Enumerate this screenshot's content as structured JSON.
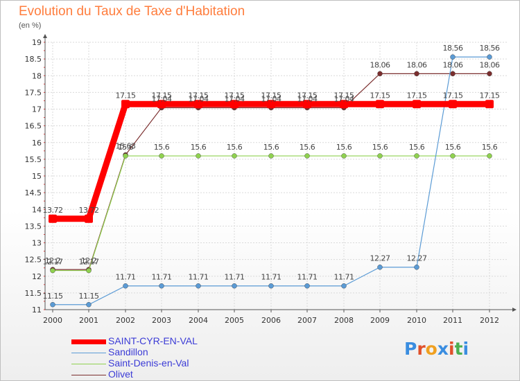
{
  "header": {
    "title": "Evolution du Taux de Taxe d'Habitation",
    "subtitle": "(en %)"
  },
  "logo": {
    "text": "Proxiti",
    "colors": [
      "#3a8de0",
      "#e0502a",
      "#f0a020",
      "#3a8de0",
      "#e0502a",
      "#4caf50",
      "#3a8de0"
    ]
  },
  "chart_data": {
    "type": "line",
    "title": "Evolution du Taux de Taxe d'Habitation",
    "subtitle": "(en %)",
    "x": [
      "2000",
      "2001",
      "2002",
      "2003",
      "2004",
      "2005",
      "2006",
      "2007",
      "2008",
      "2009",
      "2010",
      "2011",
      "2012"
    ],
    "ylim": [
      11,
      19
    ],
    "yticks": [
      "11",
      "11.5",
      "12",
      "12.5",
      "13",
      "13.5",
      "14",
      "14.5",
      "15",
      "15.5",
      "16",
      "16.5",
      "17",
      "17.5",
      "18",
      "18.5",
      "19"
    ],
    "grid": true,
    "legend_position": "bottom-left",
    "series": [
      {
        "name": "SAINT-CYR-EN-VAL",
        "color": "#ff0000",
        "values": [
          13.72,
          13.72,
          17.15,
          17.15,
          17.15,
          17.15,
          17.15,
          17.15,
          17.15,
          17.15,
          17.15,
          17.15,
          17.15
        ],
        "labels": [
          "13.72",
          "13.72",
          "17.15",
          "17.15",
          "17.15",
          "17.15",
          "17.15",
          "17.15",
          "17.15",
          "17.15",
          "17.15",
          "17.15",
          "17.15"
        ]
      },
      {
        "name": "Sandillon",
        "color": "#5b9bd5",
        "values": [
          11.15,
          11.15,
          11.71,
          11.71,
          11.71,
          11.71,
          11.71,
          11.71,
          11.71,
          12.27,
          12.27,
          18.56,
          18.56
        ],
        "labels": [
          "11.15",
          "11.15",
          "11.71",
          "11.71",
          "11.71",
          "11.71",
          "11.71",
          "11.71",
          "11.71",
          "12.27",
          "12.27",
          "18.56",
          "18.56"
        ]
      },
      {
        "name": "Saint-Denis-en-Val",
        "color": "#8fd14f",
        "values": [
          12.17,
          12.17,
          15.6,
          15.6,
          15.6,
          15.6,
          15.6,
          15.6,
          15.6,
          15.6,
          15.6,
          15.6,
          15.6
        ],
        "labels": [
          "12.17",
          "12.17",
          "15.6",
          "15.6",
          "15.6",
          "15.6",
          "15.6",
          "15.6",
          "15.6",
          "15.6",
          "15.6",
          "15.6",
          "15.6"
        ]
      },
      {
        "name": "Olivet",
        "color": "#7b2e2e",
        "values": [
          12.2,
          12.2,
          15.63,
          17.04,
          17.04,
          17.04,
          17.04,
          17.04,
          17.04,
          18.06,
          18.06,
          18.06,
          18.06
        ],
        "labels": [
          "12.2",
          "12.2",
          "15.63",
          "17.04",
          "17.04",
          "17.04",
          "17.04",
          "17.04",
          "17.04",
          "18.06",
          "18.06",
          "18.06",
          "18.06"
        ]
      }
    ]
  }
}
